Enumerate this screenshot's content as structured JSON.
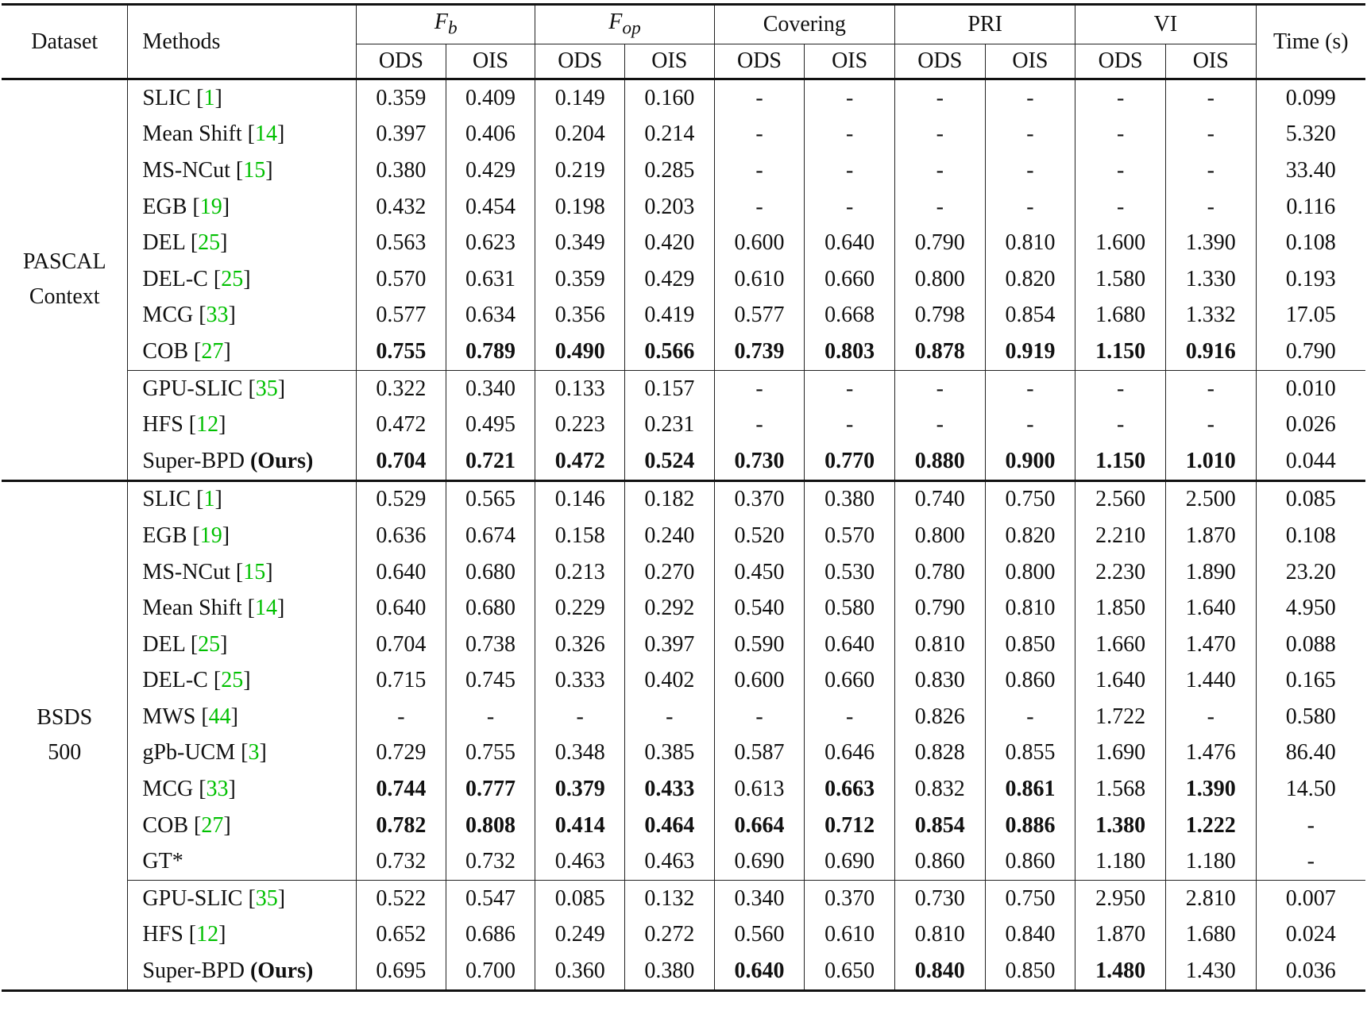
{
  "header": {
    "dataset": "Dataset",
    "methods": "Methods",
    "groups": [
      {
        "label": "F",
        "sub": "b"
      },
      {
        "label": "F",
        "sub": "op"
      },
      {
        "label": "Covering",
        "sub": ""
      },
      {
        "label": "PRI",
        "sub": ""
      },
      {
        "label": "VI",
        "sub": ""
      }
    ],
    "ods": "ODS",
    "ois": "OIS",
    "time": "Time (s)"
  },
  "sections": [
    {
      "dataset_lines": [
        "PASCAL",
        "Context"
      ],
      "groups": [
        [
          {
            "name": "SLIC",
            "cite": "1",
            "suffix": "",
            "vals": [
              "0.359",
              "0.409",
              "0.149",
              "0.160",
              "-",
              "-",
              "-",
              "-",
              "-",
              "-",
              "0.099"
            ],
            "bold": []
          },
          {
            "name": "Mean Shift",
            "cite": "14",
            "suffix": "",
            "vals": [
              "0.397",
              "0.406",
              "0.204",
              "0.214",
              "-",
              "-",
              "-",
              "-",
              "-",
              "-",
              "5.320"
            ],
            "bold": []
          },
          {
            "name": "MS-NCut",
            "cite": "15",
            "suffix": "",
            "vals": [
              "0.380",
              "0.429",
              "0.219",
              "0.285",
              "-",
              "-",
              "-",
              "-",
              "-",
              "-",
              "33.40"
            ],
            "bold": []
          },
          {
            "name": "EGB",
            "cite": "19",
            "suffix": "",
            "vals": [
              "0.432",
              "0.454",
              "0.198",
              "0.203",
              "-",
              "-",
              "-",
              "-",
              "-",
              "-",
              "0.116"
            ],
            "bold": []
          },
          {
            "name": "DEL",
            "cite": "25",
            "suffix": "",
            "vals": [
              "0.563",
              "0.623",
              "0.349",
              "0.420",
              "0.600",
              "0.640",
              "0.790",
              "0.810",
              "1.600",
              "1.390",
              "0.108"
            ],
            "bold": []
          },
          {
            "name": "DEL-C",
            "cite": "25",
            "suffix": "",
            "vals": [
              "0.570",
              "0.631",
              "0.359",
              "0.429",
              "0.610",
              "0.660",
              "0.800",
              "0.820",
              "1.580",
              "1.330",
              "0.193"
            ],
            "bold": []
          },
          {
            "name": "MCG",
            "cite": "33",
            "suffix": "",
            "vals": [
              "0.577",
              "0.634",
              "0.356",
              "0.419",
              "0.577",
              "0.668",
              "0.798",
              "0.854",
              "1.680",
              "1.332",
              "17.05"
            ],
            "bold": []
          },
          {
            "name": "COB",
            "cite": "27",
            "suffix": "",
            "vals": [
              "0.755",
              "0.789",
              "0.490",
              "0.566",
              "0.739",
              "0.803",
              "0.878",
              "0.919",
              "1.150",
              "0.916",
              "0.790"
            ],
            "bold": [
              0,
              1,
              2,
              3,
              4,
              5,
              6,
              7,
              8,
              9
            ]
          }
        ],
        [
          {
            "name": "GPU-SLIC",
            "cite": "35",
            "suffix": "",
            "vals": [
              "0.322",
              "0.340",
              "0.133",
              "0.157",
              "-",
              "-",
              "-",
              "-",
              "-",
              "-",
              "0.010"
            ],
            "bold": []
          },
          {
            "name": "HFS",
            "cite": "12",
            "suffix": "",
            "vals": [
              "0.472",
              "0.495",
              "0.223",
              "0.231",
              "-",
              "-",
              "-",
              "-",
              "-",
              "-",
              "0.026"
            ],
            "bold": []
          },
          {
            "name": "Super-BPD",
            "cite": "",
            "suffix": "(Ours)",
            "vals": [
              "0.704",
              "0.721",
              "0.472",
              "0.524",
              "0.730",
              "0.770",
              "0.880",
              "0.900",
              "1.150",
              "1.010",
              "0.044"
            ],
            "bold": [
              0,
              1,
              2,
              3,
              4,
              5,
              6,
              7,
              8,
              9
            ]
          }
        ]
      ]
    },
    {
      "dataset_lines": [
        "BSDS",
        "500"
      ],
      "groups": [
        [
          {
            "name": "SLIC",
            "cite": "1",
            "suffix": "",
            "vals": [
              "0.529",
              "0.565",
              "0.146",
              "0.182",
              "0.370",
              "0.380",
              "0.740",
              "0.750",
              "2.560",
              "2.500",
              "0.085"
            ],
            "bold": []
          },
          {
            "name": "EGB",
            "cite": "19",
            "suffix": "",
            "vals": [
              "0.636",
              "0.674",
              "0.158",
              "0.240",
              "0.520",
              "0.570",
              "0.800",
              "0.820",
              "2.210",
              "1.870",
              "0.108"
            ],
            "bold": []
          },
          {
            "name": "MS-NCut",
            "cite": "15",
            "suffix": "",
            "vals": [
              "0.640",
              "0.680",
              "0.213",
              "0.270",
              "0.450",
              "0.530",
              "0.780",
              "0.800",
              "2.230",
              "1.890",
              "23.20"
            ],
            "bold": []
          },
          {
            "name": "Mean Shift",
            "cite": "14",
            "suffix": "",
            "vals": [
              "0.640",
              "0.680",
              "0.229",
              "0.292",
              "0.540",
              "0.580",
              "0.790",
              "0.810",
              "1.850",
              "1.640",
              "4.950"
            ],
            "bold": []
          },
          {
            "name": "DEL",
            "cite": "25",
            "suffix": "",
            "vals": [
              "0.704",
              "0.738",
              "0.326",
              "0.397",
              "0.590",
              "0.640",
              "0.810",
              "0.850",
              "1.660",
              "1.470",
              "0.088"
            ],
            "bold": []
          },
          {
            "name": "DEL-C",
            "cite": "25",
            "suffix": "",
            "vals": [
              "0.715",
              "0.745",
              "0.333",
              "0.402",
              "0.600",
              "0.660",
              "0.830",
              "0.860",
              "1.640",
              "1.440",
              "0.165"
            ],
            "bold": []
          },
          {
            "name": "MWS",
            "cite": "44",
            "suffix": "",
            "vals": [
              "-",
              "-",
              "-",
              "-",
              "-",
              "-",
              "0.826",
              "-",
              "1.722",
              "-",
              "0.580"
            ],
            "bold": []
          },
          {
            "name": "gPb-UCM",
            "cite": "3",
            "suffix": "",
            "vals": [
              "0.729",
              "0.755",
              "0.348",
              "0.385",
              "0.587",
              "0.646",
              "0.828",
              "0.855",
              "1.690",
              "1.476",
              "86.40"
            ],
            "bold": []
          },
          {
            "name": "MCG",
            "cite": "33",
            "suffix": "",
            "vals": [
              "0.744",
              "0.777",
              "0.379",
              "0.433",
              "0.613",
              "0.663",
              "0.832",
              "0.861",
              "1.568",
              "1.390",
              "14.50"
            ],
            "bold": [
              0,
              1,
              2,
              3,
              5,
              7,
              9
            ]
          },
          {
            "name": "COB",
            "cite": "27",
            "suffix": "",
            "vals": [
              "0.782",
              "0.808",
              "0.414",
              "0.464",
              "0.664",
              "0.712",
              "0.854",
              "0.886",
              "1.380",
              "1.222",
              "-"
            ],
            "bold": [
              0,
              1,
              2,
              3,
              4,
              5,
              6,
              7,
              8,
              9
            ]
          },
          {
            "name": "GT*",
            "cite": "",
            "suffix": "",
            "vals": [
              "0.732",
              "0.732",
              "0.463",
              "0.463",
              "0.690",
              "0.690",
              "0.860",
              "0.860",
              "1.180",
              "1.180",
              "-"
            ],
            "bold": []
          }
        ],
        [
          {
            "name": "GPU-SLIC",
            "cite": "35",
            "suffix": "",
            "vals": [
              "0.522",
              "0.547",
              "0.085",
              "0.132",
              "0.340",
              "0.370",
              "0.730",
              "0.750",
              "2.950",
              "2.810",
              "0.007"
            ],
            "bold": []
          },
          {
            "name": "HFS",
            "cite": "12",
            "suffix": "",
            "vals": [
              "0.652",
              "0.686",
              "0.249",
              "0.272",
              "0.560",
              "0.610",
              "0.810",
              "0.840",
              "1.870",
              "1.680",
              "0.024"
            ],
            "bold": []
          },
          {
            "name": "Super-BPD",
            "cite": "",
            "suffix": "(Ours)",
            "vals": [
              "0.695",
              "0.700",
              "0.360",
              "0.380",
              "0.640",
              "0.650",
              "0.840",
              "0.850",
              "1.480",
              "1.430",
              "0.036"
            ],
            "bold": [
              4,
              6,
              8
            ]
          }
        ]
      ]
    }
  ]
}
